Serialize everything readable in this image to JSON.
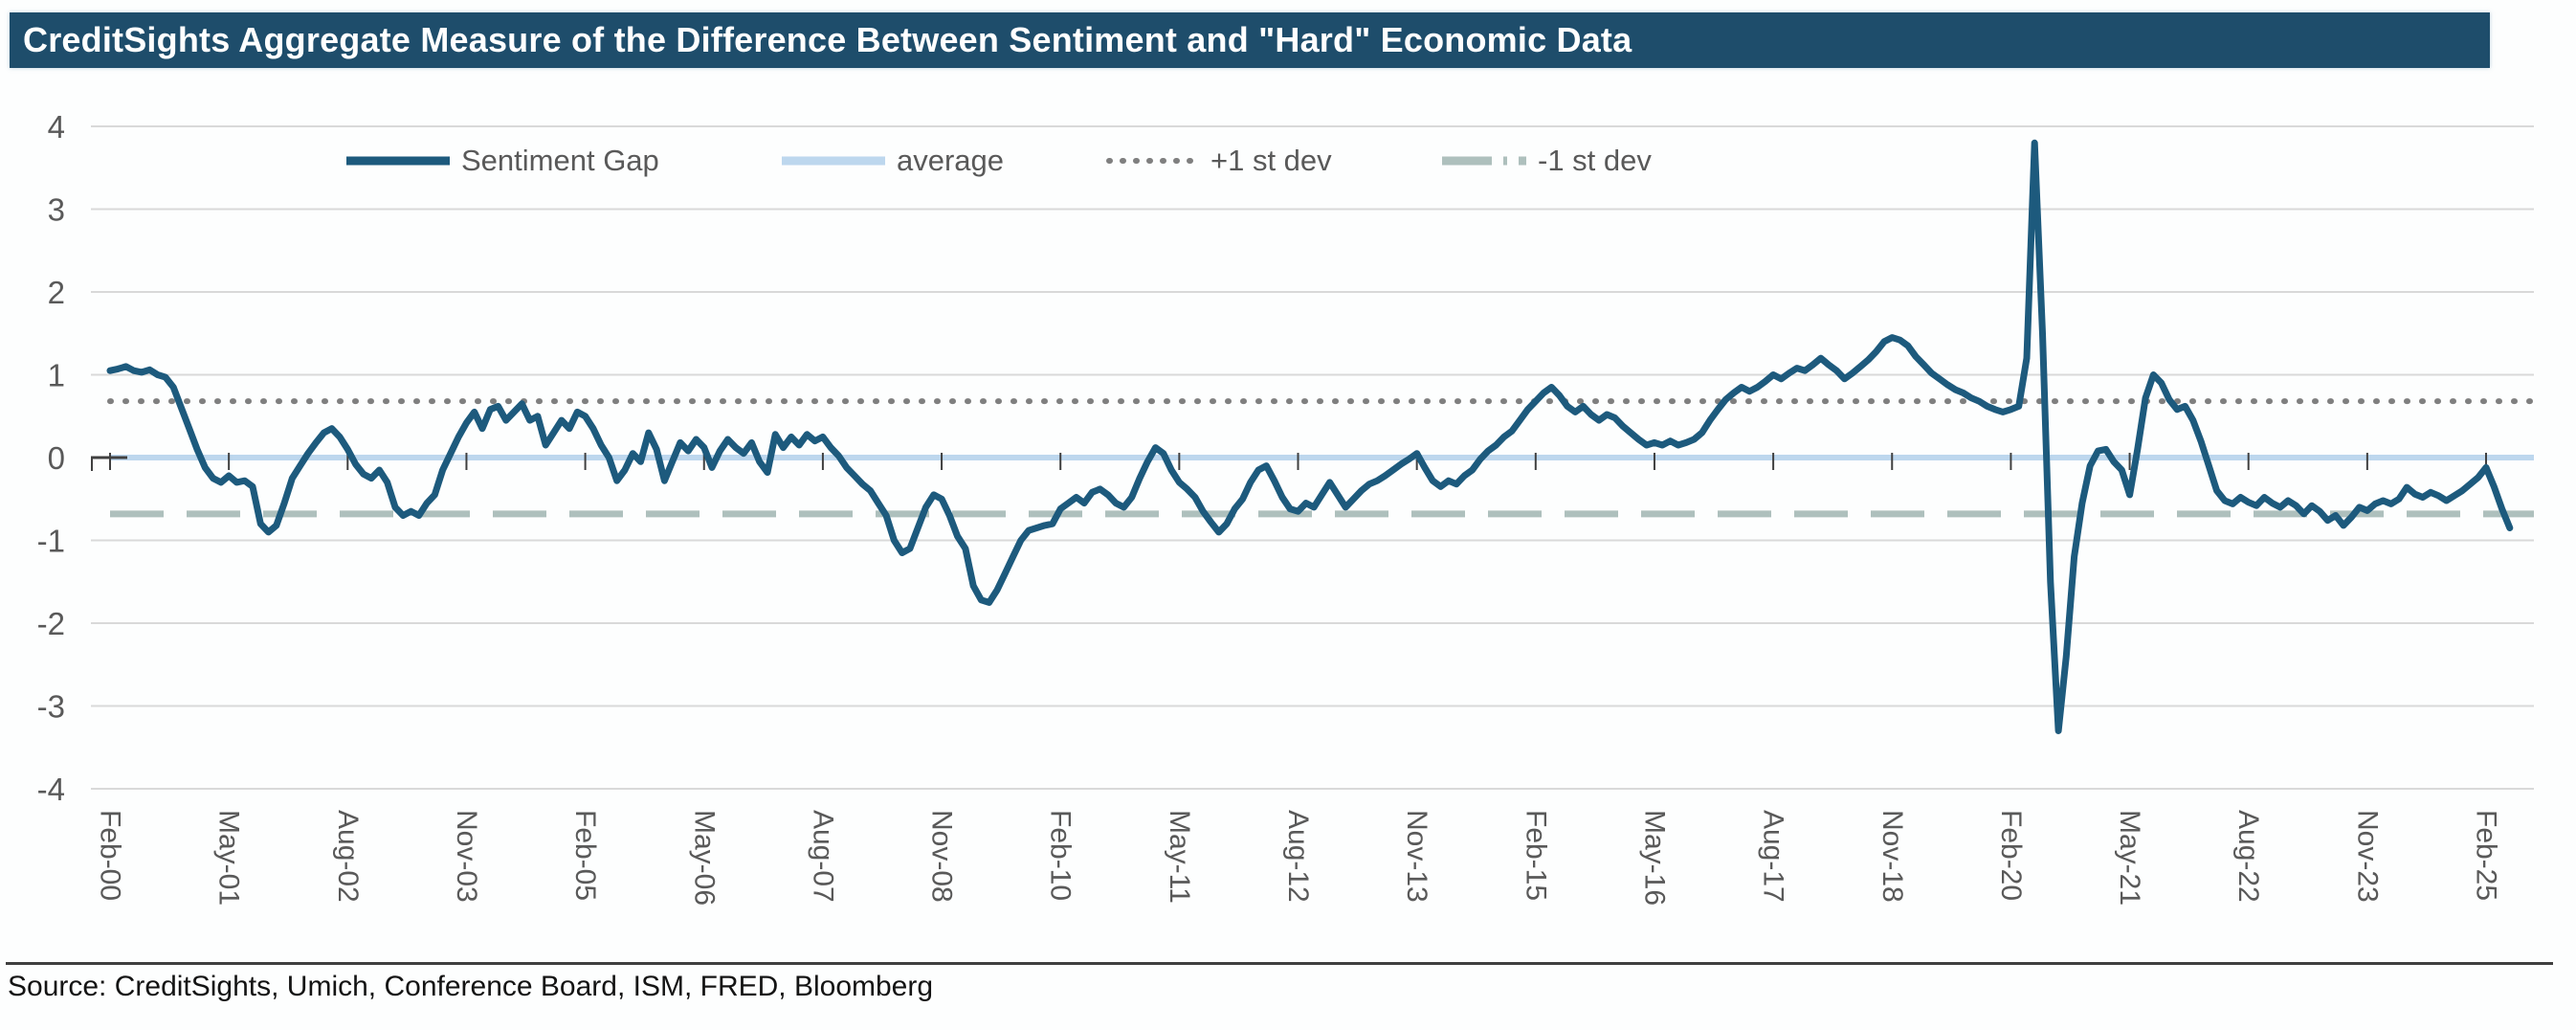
{
  "title": "CreditSights Aggregate Measure of the Difference Between Sentiment and \"Hard\" Economic Data",
  "source": "Source: CreditSights, Umich, Conference Board, ISM, FRED, Bloomberg",
  "colors": {
    "title_bar_bg": "#1e4d6b",
    "title_text": "#ffffff",
    "sentiment_line": "#1d5a7d",
    "average_line": "#bdd7ee",
    "plus_stdev_line": "#7f7f7f",
    "minus_stdev_line": "#aec0bd",
    "gridline": "#d9d9d9",
    "axis_text": "#595959",
    "tick_mark": "#404040"
  },
  "legend": {
    "items": [
      {
        "label": "Sentiment Gap",
        "color": "#1d5a7d",
        "style": "solid",
        "marker_w": 112
      },
      {
        "label": "average",
        "color": "#bdd7ee",
        "style": "solid",
        "marker_w": 112
      },
      {
        "label": "+1 st dev",
        "color": "#7f7f7f",
        "style": "dotted",
        "marker_w": 100
      },
      {
        "label": "-1 st dev",
        "color": "#aec0bd",
        "style": "dash-dot",
        "marker_w": 92
      }
    ]
  },
  "chart_data": {
    "type": "line",
    "title": "CreditSights Aggregate Measure of the Difference Between Sentiment and \"Hard\" Economic Data",
    "xlabel": "",
    "ylabel": "",
    "ylim": [
      -4,
      4
    ],
    "grid": true,
    "legend_position": "top",
    "y_ticks": [
      4,
      3,
      2,
      1,
      0,
      -1,
      -2,
      -3,
      -4
    ],
    "x_ticks": [
      "Feb-00",
      "May-01",
      "Aug-02",
      "Nov-03",
      "Feb-05",
      "May-06",
      "Aug-07",
      "Nov-08",
      "Feb-10",
      "May-11",
      "Aug-12",
      "Nov-13",
      "Feb-15",
      "May-16",
      "Aug-17",
      "Nov-18",
      "Feb-20",
      "May-21",
      "Aug-22",
      "Nov-23",
      "Feb-25"
    ],
    "x_tick_interval_months": 15,
    "reference_lines": [
      {
        "label": "average",
        "value": 0.0
      },
      {
        "label": "+1 st dev",
        "value": 0.68
      },
      {
        "label": "-1 st dev",
        "value": -0.68
      }
    ],
    "series": [
      {
        "name": "Sentiment Gap",
        "start": "Feb-00",
        "frequency": "monthly",
        "values": [
          1.05,
          1.07,
          1.1,
          1.05,
          1.03,
          1.06,
          1.0,
          0.97,
          0.85,
          0.6,
          0.35,
          0.1,
          -0.12,
          -0.25,
          -0.3,
          -0.22,
          -0.3,
          -0.28,
          -0.35,
          -0.8,
          -0.9,
          -0.82,
          -0.55,
          -0.25,
          -0.1,
          0.05,
          0.18,
          0.3,
          0.35,
          0.25,
          0.1,
          -0.08,
          -0.2,
          -0.25,
          -0.15,
          -0.3,
          -0.6,
          -0.7,
          -0.65,
          -0.7,
          -0.55,
          -0.45,
          -0.15,
          0.05,
          0.25,
          0.42,
          0.55,
          0.35,
          0.58,
          0.62,
          0.45,
          0.55,
          0.65,
          0.45,
          0.5,
          0.15,
          0.3,
          0.45,
          0.35,
          0.55,
          0.5,
          0.35,
          0.15,
          0.0,
          -0.28,
          -0.15,
          0.05,
          -0.05,
          0.3,
          0.1,
          -0.28,
          -0.05,
          0.18,
          0.08,
          0.22,
          0.12,
          -0.12,
          0.08,
          0.22,
          0.12,
          0.05,
          0.18,
          -0.05,
          -0.18,
          0.28,
          0.12,
          0.25,
          0.15,
          0.28,
          0.2,
          0.25,
          0.12,
          0.02,
          -0.12,
          -0.22,
          -0.32,
          -0.4,
          -0.55,
          -0.7,
          -1.0,
          -1.15,
          -1.1,
          -0.85,
          -0.6,
          -0.45,
          -0.5,
          -0.7,
          -0.95,
          -1.1,
          -1.55,
          -1.72,
          -1.75,
          -1.6,
          -1.4,
          -1.2,
          -1.0,
          -0.88,
          -0.85,
          -0.82,
          -0.8,
          -0.62,
          -0.55,
          -0.48,
          -0.55,
          -0.42,
          -0.38,
          -0.45,
          -0.55,
          -0.6,
          -0.48,
          -0.25,
          -0.05,
          0.12,
          0.05,
          -0.15,
          -0.3,
          -0.38,
          -0.48,
          -0.65,
          -0.78,
          -0.9,
          -0.8,
          -0.62,
          -0.5,
          -0.3,
          -0.15,
          -0.1,
          -0.28,
          -0.48,
          -0.62,
          -0.65,
          -0.55,
          -0.6,
          -0.45,
          -0.3,
          -0.45,
          -0.6,
          -0.5,
          -0.4,
          -0.32,
          -0.28,
          -0.22,
          -0.15,
          -0.08,
          -0.02,
          0.05,
          -0.12,
          -0.28,
          -0.35,
          -0.28,
          -0.32,
          -0.22,
          -0.15,
          -0.02,
          0.08,
          0.15,
          0.25,
          0.32,
          0.45,
          0.58,
          0.68,
          0.78,
          0.85,
          0.75,
          0.62,
          0.55,
          0.62,
          0.52,
          0.45,
          0.52,
          0.48,
          0.38,
          0.3,
          0.22,
          0.15,
          0.18,
          0.15,
          0.2,
          0.15,
          0.18,
          0.22,
          0.3,
          0.45,
          0.58,
          0.7,
          0.78,
          0.85,
          0.8,
          0.85,
          0.92,
          1.0,
          0.95,
          1.02,
          1.08,
          1.05,
          1.12,
          1.2,
          1.12,
          1.05,
          0.95,
          1.02,
          1.1,
          1.18,
          1.28,
          1.4,
          1.45,
          1.42,
          1.35,
          1.22,
          1.12,
          1.02,
          0.95,
          0.88,
          0.82,
          0.78,
          0.72,
          0.68,
          0.62,
          0.58,
          0.55,
          0.58,
          0.62,
          1.2,
          3.8,
          1.5,
          -1.5,
          -3.3,
          -2.4,
          -1.2,
          -0.55,
          -0.1,
          0.08,
          0.1,
          -0.05,
          -0.15,
          -0.45,
          0.1,
          0.72,
          1.0,
          0.9,
          0.7,
          0.58,
          0.62,
          0.45,
          0.2,
          -0.1,
          -0.4,
          -0.52,
          -0.56,
          -0.48,
          -0.54,
          -0.58,
          -0.48,
          -0.55,
          -0.6,
          -0.52,
          -0.58,
          -0.68,
          -0.58,
          -0.65,
          -0.76,
          -0.7,
          -0.82,
          -0.72,
          -0.6,
          -0.64,
          -0.56,
          -0.52,
          -0.56,
          -0.5,
          -0.36,
          -0.44,
          -0.48,
          -0.42,
          -0.46,
          -0.52,
          -0.46,
          -0.4,
          -0.32,
          -0.24,
          -0.12,
          -0.35,
          -0.62,
          -0.85
        ]
      }
    ]
  }
}
